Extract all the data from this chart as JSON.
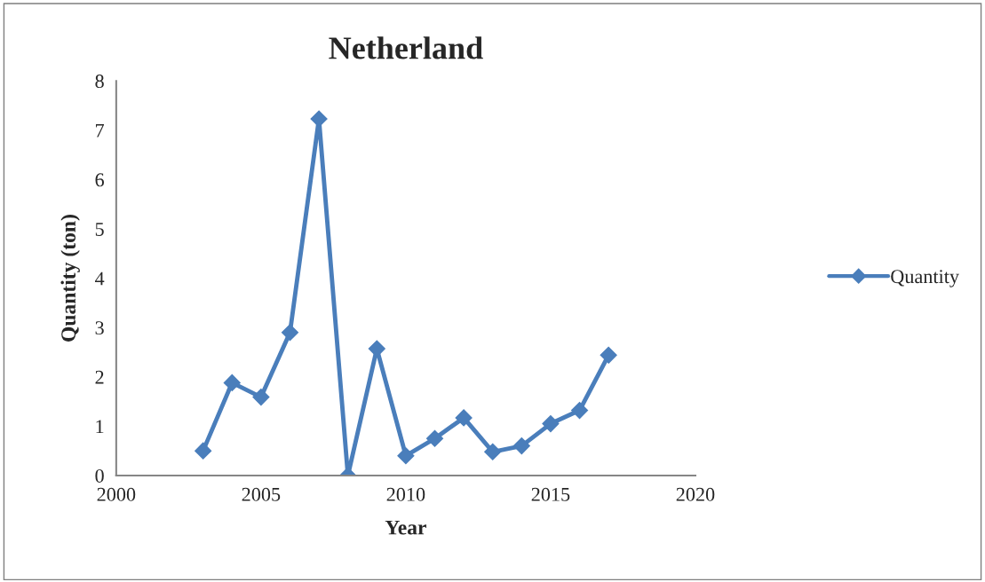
{
  "chart_data": {
    "type": "line",
    "title": "Netherland",
    "xlabel": "Year",
    "ylabel": "Quantity (ton)",
    "x": [
      2003,
      2004,
      2005,
      2006,
      2007,
      2008,
      2009,
      2010,
      2011,
      2012,
      2013,
      2014,
      2015,
      2016,
      2017
    ],
    "series": [
      {
        "name": "Quantity",
        "color": "#4a7ebb",
        "values": [
          0.5,
          1.88,
          1.59,
          2.9,
          7.23,
          0,
          2.57,
          0.4,
          0.75,
          1.17,
          0.48,
          0.6,
          1.05,
          1.32,
          2.44
        ]
      }
    ],
    "xlim": [
      2000,
      2020
    ],
    "xticks": [
      2000,
      2005,
      2010,
      2015,
      2020
    ],
    "ylim": [
      0,
      8
    ],
    "yticks": [
      0,
      1,
      2,
      3,
      4,
      5,
      6,
      7,
      8
    ],
    "marker": "diamond",
    "line_style": "solid",
    "grid": false,
    "legend": "right"
  }
}
